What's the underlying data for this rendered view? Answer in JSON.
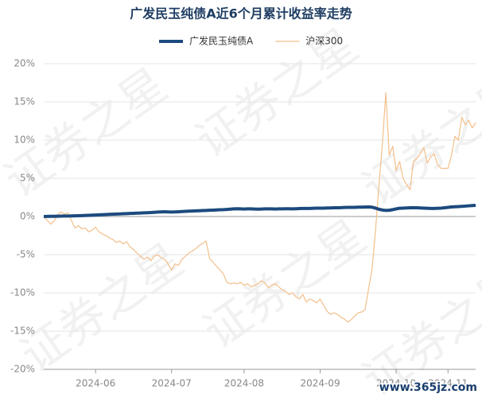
{
  "chart_data": {
    "type": "line",
    "title": "广发民玉纯债A近6个月累计收益率走势",
    "watermark": "证券之星",
    "source_mark": "www.365jz.com",
    "categories": [
      null,
      null,
      null,
      null,
      null,
      null,
      null,
      null,
      null,
      null,
      null,
      null,
      null,
      null,
      null,
      "2024-06",
      null,
      null,
      null,
      null,
      null,
      null,
      null,
      null,
      null,
      null,
      null,
      null,
      null,
      null,
      null,
      null,
      null,
      null,
      null,
      null,
      null,
      "2024-07",
      null,
      null,
      null,
      null,
      null,
      null,
      null,
      null,
      null,
      null,
      null,
      null,
      null,
      null,
      null,
      null,
      null,
      null,
      null,
      null,
      "2024-08",
      null,
      null,
      null,
      null,
      null,
      null,
      null,
      null,
      null,
      null,
      null,
      null,
      null,
      null,
      null,
      null,
      null,
      null,
      null,
      null,
      null,
      "2024-09",
      null,
      null,
      null,
      null,
      null,
      null,
      null,
      null,
      null,
      null,
      null,
      null,
      null,
      null,
      null,
      null,
      null,
      null,
      null,
      null,
      null,
      "2024-10",
      null,
      null,
      null,
      null,
      null,
      null,
      null,
      null,
      null,
      null,
      null,
      null,
      null,
      null,
      "2024-11",
      null,
      null,
      null,
      null,
      null,
      null,
      null,
      null
    ],
    "series": [
      {
        "name": "广发民玉纯债A",
        "color": "#1c4a7e",
        "width": 4,
        "values": [
          0,
          0.01,
          0.02,
          0.03,
          0.04,
          0.05,
          0.06,
          0.07,
          0.08,
          0.09,
          0.1,
          0.12,
          0.14,
          0.16,
          0.18,
          0.2,
          0.22,
          0.24,
          0.26,
          0.28,
          0.3,
          0.32,
          0.34,
          0.36,
          0.38,
          0.4,
          0.42,
          0.44,
          0.46,
          0.48,
          0.5,
          0.52,
          0.55,
          0.58,
          0.6,
          0.62,
          0.6,
          0.58,
          0.6,
          0.62,
          0.65,
          0.68,
          0.7,
          0.72,
          0.74,
          0.76,
          0.78,
          0.8,
          0.82,
          0.84,
          0.86,
          0.88,
          0.9,
          0.93,
          0.96,
          1.0,
          1.02,
          1.0,
          0.98,
          1.0,
          1.0,
          0.98,
          0.96,
          0.98,
          1.0,
          1.0,
          1.0,
          0.98,
          1.0,
          1.0,
          1.02,
          1.02,
          1.0,
          1.02,
          1.04,
          1.05,
          1.06,
          1.06,
          1.08,
          1.1,
          1.1,
          1.1,
          1.12,
          1.12,
          1.14,
          1.15,
          1.16,
          1.18,
          1.2,
          1.2,
          1.2,
          1.22,
          1.22,
          1.24,
          1.25,
          1.22,
          1.1,
          0.95,
          0.85,
          0.8,
          0.82,
          0.9,
          1.0,
          1.08,
          1.1,
          1.12,
          1.14,
          1.15,
          1.14,
          1.12,
          1.1,
          1.08,
          1.06,
          1.06,
          1.08,
          1.1,
          1.15,
          1.2,
          1.25,
          1.28,
          1.3,
          1.33,
          1.36,
          1.4,
          1.43,
          1.46
        ]
      },
      {
        "name": "沪深300",
        "color": "#f3bf8a",
        "width": 1.2,
        "values": [
          0,
          -0.5,
          -1,
          -0.6,
          0.2,
          0.6,
          0.3,
          0.5,
          -0.5,
          -1.5,
          -1.2,
          -1.6,
          -1.5,
          -2,
          -1.8,
          -1.4,
          -2,
          -2.3,
          -2.5,
          -2.8,
          -3,
          -3.4,
          -3.2,
          -3.6,
          -3.3,
          -4,
          -4.3,
          -4.8,
          -5.2,
          -5.6,
          -5.3,
          -5.8,
          -5.2,
          -5,
          -5.4,
          -5.6,
          -6.2,
          -7,
          -6.2,
          -6.4,
          -5.6,
          -5.2,
          -4.8,
          -4.5,
          -4.2,
          -3.8,
          -3.5,
          -3.2,
          -5.5,
          -6,
          -6.5,
          -7,
          -7.5,
          -8.6,
          -8.8,
          -8.7,
          -8.8,
          -8.6,
          -9,
          -8.8,
          -9.2,
          -9.0,
          -8.8,
          -8.4,
          -8.7,
          -9.3,
          -9.0,
          -8.8,
          -9.2,
          -9.6,
          -9.8,
          -10.2,
          -10.0,
          -10.5,
          -10.8,
          -10.2,
          -11.2,
          -10.8,
          -11,
          -11.3,
          -10.8,
          -11.6,
          -12.4,
          -12.8,
          -12.6,
          -12.8,
          -13.2,
          -13.4,
          -13.8,
          -13.5,
          -13,
          -12.6,
          -12.5,
          -12.2,
          -9.5,
          -7,
          -2,
          4,
          9.5,
          16.2,
          8,
          9.2,
          6,
          7.2,
          5,
          4.2,
          3.5,
          7.2,
          7.6,
          8.2,
          9,
          7,
          7.8,
          8.2,
          6.8,
          6.3,
          6.3,
          6.3,
          8,
          10.5,
          10,
          13,
          12,
          12.6,
          11.6,
          12.3
        ]
      }
    ],
    "ylim": [
      -20,
      20
    ],
    "yticks": [
      {
        "value": -20,
        "label": "-20%"
      },
      {
        "value": -15,
        "label": "-15%"
      },
      {
        "value": -10,
        "label": "-10%"
      },
      {
        "value": -5,
        "label": "-5%"
      },
      {
        "value": 0,
        "label": "0%"
      },
      {
        "value": 5,
        "label": "5%"
      },
      {
        "value": 10,
        "label": "10%"
      },
      {
        "value": 15,
        "label": "15%"
      },
      {
        "value": 20,
        "label": "20%"
      }
    ],
    "grid": true
  }
}
